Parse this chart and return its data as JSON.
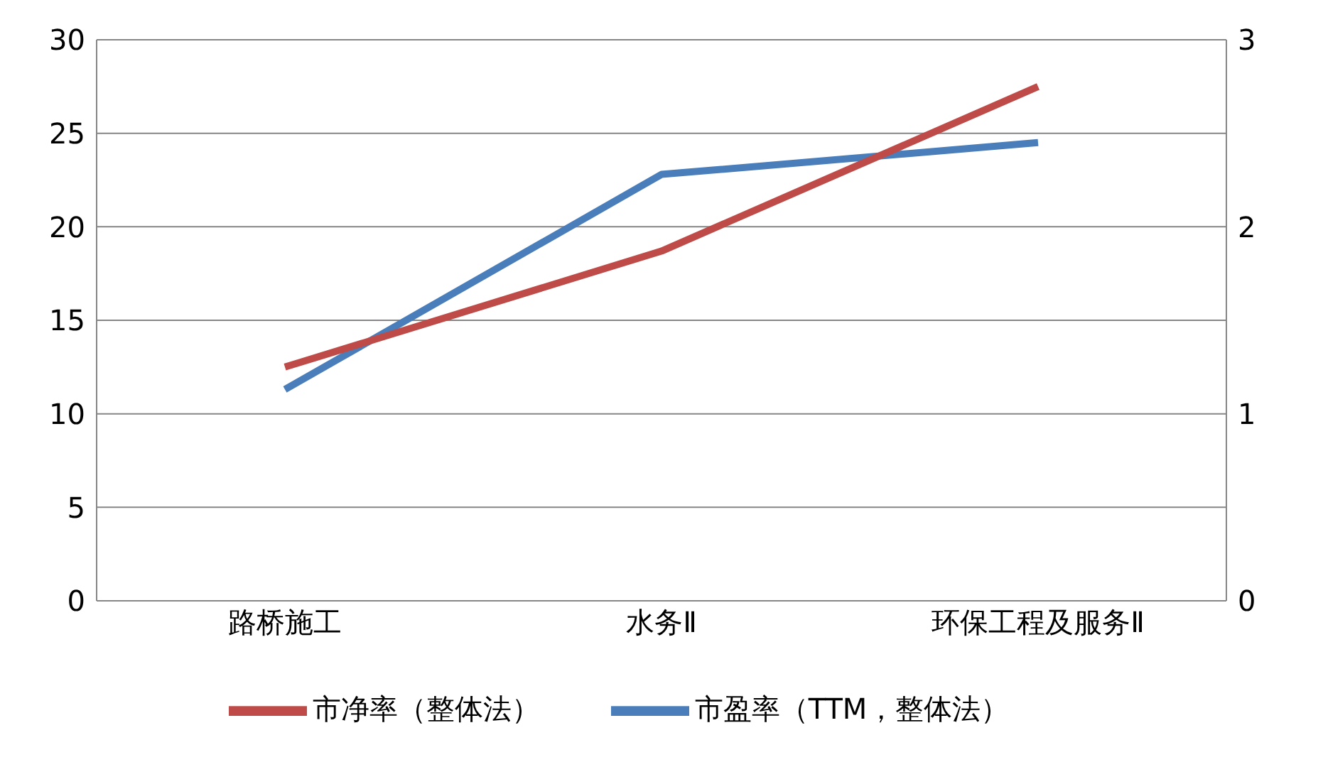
{
  "chart_data": {
    "type": "line",
    "categories": [
      "路桥施工",
      "水务Ⅱ",
      "环保工程及服务Ⅱ"
    ],
    "series": [
      {
        "name": "市盈率（TTM，整体法）",
        "color": "#4a7ebb",
        "values": [
          11.3,
          22.8,
          24.5
        ]
      },
      {
        "name": "市净率（整体法）",
        "color": "#be4b48",
        "values": [
          1.25,
          1.87,
          2.75
        ],
        "axis": "y2"
      }
    ],
    "ylim": [
      0,
      30
    ],
    "yticks": [
      0,
      5,
      10,
      15,
      20,
      25,
      30
    ],
    "y2lim": [
      0,
      3
    ],
    "y2ticks": [
      0,
      1,
      2,
      3
    ],
    "grid": "y",
    "legend": "bottom",
    "marker": "none",
    "line_style": "solid"
  }
}
